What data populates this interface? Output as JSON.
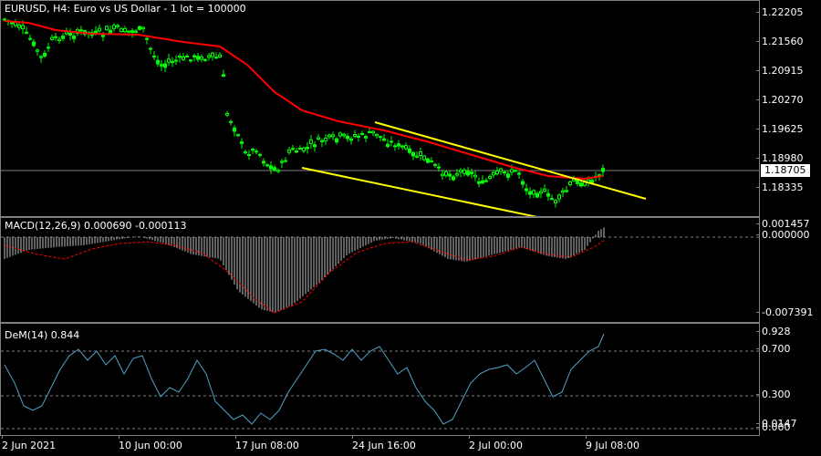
{
  "main_chart": {
    "title": "EURUSD, H4:  Euro vs US Dollar - 1 lot = 100000",
    "price_ticks": [
      "1.22205",
      "1.21560",
      "1.20915",
      "1.20270",
      "1.19625",
      "1.18980",
      "1.18335"
    ],
    "current_price": "1.18705",
    "colors": {
      "candle": "#00ff00",
      "ma": "#ff0000",
      "trendline": "#ffff00",
      "background": "#000000"
    }
  },
  "macd": {
    "label": "MACD(12,26,9) 0.000690 -0.000113",
    "ticks": [
      "0.001457",
      "0.000000",
      "-0.007391"
    ],
    "colors": {
      "histogram": "#c0c0c0",
      "signal": "#ff0000"
    }
  },
  "demarker": {
    "label": "DeM(14) 0.844",
    "ticks": [
      "0.928",
      "0.700",
      "0.300",
      "0.0147",
      "0.000"
    ],
    "colors": {
      "line": "#4fa3c7",
      "levels": "#808080"
    }
  },
  "time_axis": [
    "2 Jun 2021",
    "10 Jun 00:00",
    "17 Jun 08:00",
    "24 Jun 16:00",
    "2 Jul 00:00",
    "9 Jul 08:00"
  ]
}
